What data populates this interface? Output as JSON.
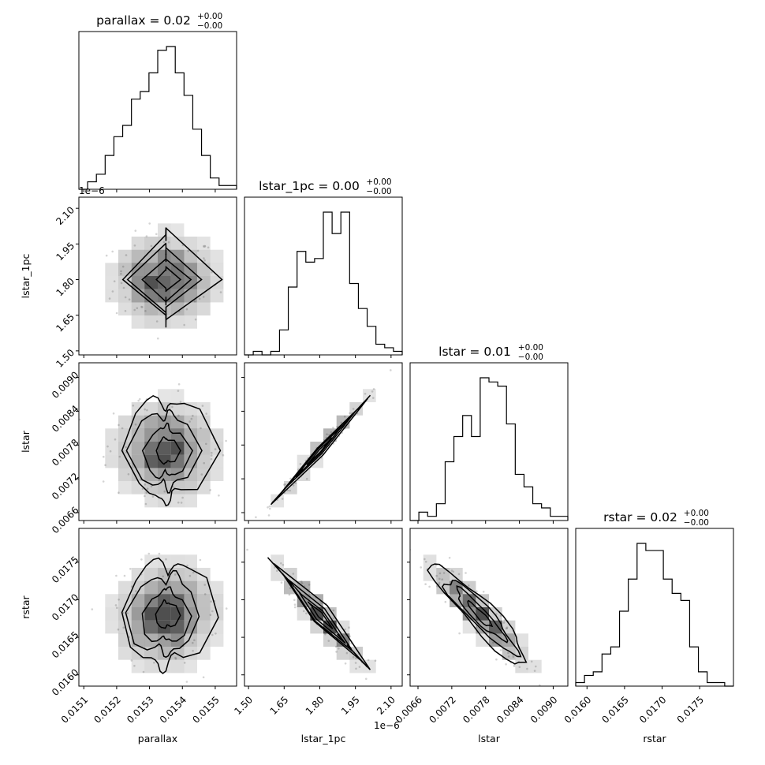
{
  "chart_data": {
    "type": "corner",
    "parameters": [
      "parallax",
      "lstar_1pc",
      "lstar",
      "rstar"
    ],
    "titles": [
      {
        "param": "parallax",
        "text": "parallax = 0.02",
        "sup": "+0.00",
        "sub": "−0.00"
      },
      {
        "param": "lstar_1pc",
        "text": "lstar_1pc = 0.00",
        "sup": "+0.00",
        "sub": "−0.00"
      },
      {
        "param": "lstar",
        "text": "lstar = 0.01",
        "sup": "+0.00",
        "sub": "−0.00"
      },
      {
        "param": "rstar",
        "text": "rstar = 0.02",
        "sup": "+0.00",
        "sub": "−0.00"
      }
    ],
    "axis_labels": [
      "parallax",
      "lstar_1pc",
      "lstar",
      "rstar"
    ],
    "offset_text": "1e−6",
    "ranges": [
      [
        0.015085,
        0.015565
      ],
      [
        1.483,
        2.147
      ],
      [
        0.00646,
        0.00926
      ],
      [
        0.01585,
        0.01795
      ]
    ],
    "ticks": [
      {
        "values": [
          0.0151,
          0.0152,
          0.0153,
          0.0154,
          0.0155
        ],
        "labels": [
          "0.0151",
          "0.0152",
          "0.0153",
          "0.0154",
          "0.0155"
        ]
      },
      {
        "values": [
          1.5,
          1.65,
          1.8,
          1.95,
          2.1
        ],
        "labels": [
          "1.50",
          "1.65",
          "1.80",
          "1.95",
          "2.10"
        ]
      },
      {
        "values": [
          0.0066,
          0.0072,
          0.0078,
          0.0084,
          0.009
        ],
        "labels": [
          "0.0066",
          "0.0072",
          "0.0078",
          "0.0084",
          "0.0090"
        ]
      },
      {
        "values": [
          0.016,
          0.0165,
          0.017,
          0.0175
        ],
        "labels": [
          "0.0160",
          "0.0165",
          "0.0170",
          "0.0175"
        ]
      }
    ],
    "histograms": [
      {
        "param": "parallax",
        "counts": [
          0,
          2,
          4,
          9,
          14,
          17,
          24,
          26,
          31,
          37,
          38,
          31,
          25,
          16,
          9,
          3,
          1,
          1
        ]
      },
      {
        "param": "lstar_1pc",
        "counts": [
          0,
          1,
          0,
          1,
          7,
          19,
          29,
          26,
          27,
          40,
          34,
          40,
          20,
          13,
          8,
          3,
          2,
          1
        ]
      },
      {
        "param": "lstar",
        "counts": [
          0,
          2,
          1,
          4,
          14,
          20,
          25,
          20,
          34,
          33,
          32,
          23,
          11,
          8,
          4,
          3,
          1,
          1
        ]
      },
      {
        "param": "rstar",
        "counts": [
          1,
          3,
          4,
          9,
          11,
          21,
          30,
          40,
          38,
          38,
          30,
          26,
          24,
          11,
          4,
          1,
          1,
          0
        ]
      }
    ],
    "joint": [
      {
        "x": "parallax",
        "y": "lstar_1pc",
        "mean": [
          0.01535,
          1.8
        ],
        "sd": [
          7.5e-05,
          0.09
        ],
        "corr": 0.0
      },
      {
        "x": "parallax",
        "y": "lstar",
        "mean": [
          0.01535,
          0.0077
        ],
        "sd": [
          7.5e-05,
          0.00042
        ],
        "corr": 0.0
      },
      {
        "x": "lstar_1pc",
        "y": "lstar",
        "mean": [
          1.8,
          0.0077
        ],
        "sd": [
          0.09,
          0.00042
        ],
        "corr": 0.99
      },
      {
        "x": "parallax",
        "y": "rstar",
        "mean": [
          0.01535,
          0.0168
        ],
        "sd": [
          7.5e-05,
          0.00033
        ],
        "corr": 0.05
      },
      {
        "x": "lstar_1pc",
        "y": "rstar",
        "mean": [
          1.8,
          0.0168
        ],
        "sd": [
          0.09,
          0.00033
        ],
        "corr": -0.95
      },
      {
        "x": "lstar",
        "y": "rstar",
        "mean": [
          0.0077,
          0.0168
        ],
        "sd": [
          0.00042,
          0.00033
        ],
        "corr": -0.92
      }
    ],
    "contour_levels_sigma": [
      0.5,
      1.0,
      1.5,
      2.0
    ],
    "colors": {
      "line": "#000000",
      "points": "#b0b0b0",
      "density": "#000000"
    }
  }
}
